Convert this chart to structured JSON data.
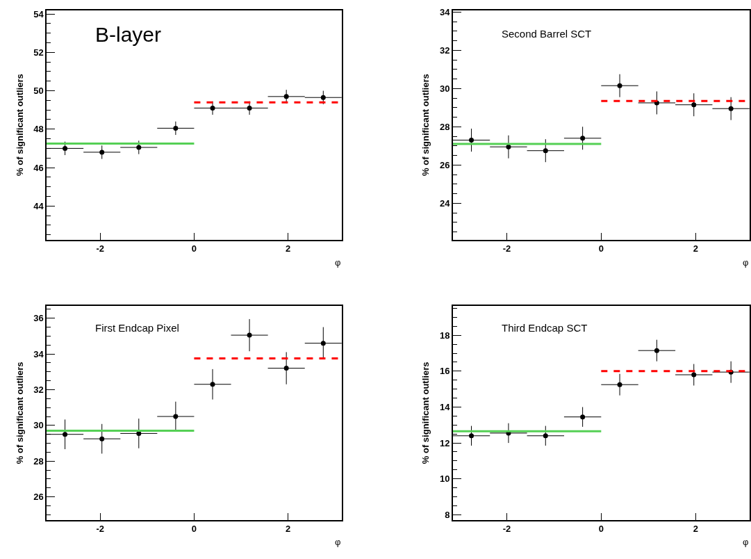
{
  "chart_data": [
    {
      "type": "scatter",
      "title": "B-layer",
      "xlabel": "φ",
      "ylabel": "% of significant outliers",
      "xlim": [
        -3.1416,
        3.1416
      ],
      "xticks": [
        -2,
        0,
        2
      ],
      "ylim": [
        42.25,
        54.2
      ],
      "yticks": [
        44,
        46,
        48,
        50,
        52,
        54
      ],
      "series": [
        {
          "marker": "circle",
          "color": "#000000",
          "x": [
            -2.749,
            -1.963,
            -1.178,
            -0.393,
            0.393,
            1.178,
            1.963,
            2.749
          ],
          "values": [
            47.0,
            46.8,
            47.05,
            48.05,
            49.1,
            49.1,
            49.7,
            49.65
          ],
          "errors": [
            0.35,
            0.35,
            0.35,
            0.35,
            0.35,
            0.35,
            0.35,
            0.35
          ],
          "xerrors": [
            0.393,
            0.393,
            0.393,
            0.393,
            0.393,
            0.393,
            0.393,
            0.393
          ]
        },
        {
          "type": "line",
          "color": "#55d055",
          "line_style": "solid",
          "x": [
            -3.1416,
            0
          ],
          "values": [
            47.25,
            47.25
          ]
        },
        {
          "type": "line",
          "color": "#ff0000",
          "line_style": "dashed",
          "x": [
            0,
            3.1416
          ],
          "values": [
            49.4,
            49.4
          ]
        }
      ]
    },
    {
      "type": "scatter",
      "title": "Second Barrel SCT",
      "xlabel": "φ",
      "ylabel": "% of significant outliers",
      "xlim": [
        -3.1416,
        3.1416
      ],
      "xticks": [
        -2,
        0,
        2
      ],
      "ylim": [
        22.1,
        34.1
      ],
      "yticks": [
        24,
        26,
        28,
        30,
        32,
        34
      ],
      "series": [
        {
          "marker": "circle",
          "color": "#000000",
          "x": [
            -2.749,
            -1.963,
            -1.178,
            -0.393,
            0.393,
            1.178,
            1.963,
            2.749
          ],
          "values": [
            27.3,
            26.95,
            26.75,
            27.4,
            30.15,
            29.25,
            29.15,
            28.95
          ],
          "errors": [
            0.6,
            0.6,
            0.6,
            0.6,
            0.6,
            0.6,
            0.6,
            0.6
          ],
          "xerrors": [
            0.393,
            0.393,
            0.393,
            0.393,
            0.393,
            0.393,
            0.393,
            0.393
          ]
        },
        {
          "type": "line",
          "color": "#55d055",
          "line_style": "solid",
          "x": [
            -3.1416,
            0
          ],
          "values": [
            27.1,
            27.1
          ]
        },
        {
          "type": "line",
          "color": "#ff0000",
          "line_style": "dashed",
          "x": [
            0,
            3.1416
          ],
          "values": [
            29.35,
            29.35
          ]
        }
      ]
    },
    {
      "type": "scatter",
      "title": "First Endcap Pixel",
      "xlabel": "φ",
      "ylabel": "% of significant outliers",
      "xlim": [
        -3.1416,
        3.1416
      ],
      "xticks": [
        -2,
        0,
        2
      ],
      "ylim": [
        24.7,
        36.7
      ],
      "yticks": [
        26,
        28,
        30,
        32,
        34,
        36
      ],
      "series": [
        {
          "marker": "circle",
          "color": "#000000",
          "x": [
            -2.749,
            -1.963,
            -1.178,
            -0.393,
            0.393,
            1.178,
            1.963,
            2.749
          ],
          "values": [
            29.5,
            29.25,
            29.55,
            30.5,
            32.3,
            35.05,
            33.2,
            34.6
          ],
          "errors": [
            0.83,
            0.83,
            0.83,
            0.83,
            0.85,
            0.9,
            0.9,
            0.9
          ],
          "xerrors": [
            0.393,
            0.393,
            0.393,
            0.393,
            0.393,
            0.393,
            0.393,
            0.393
          ]
        },
        {
          "type": "line",
          "color": "#55d055",
          "line_style": "solid",
          "x": [
            -3.1416,
            0
          ],
          "values": [
            29.7,
            29.7
          ]
        },
        {
          "type": "line",
          "color": "#ff0000",
          "line_style": "dashed",
          "x": [
            0,
            3.1416
          ],
          "values": [
            33.75,
            33.75
          ]
        }
      ]
    },
    {
      "type": "scatter",
      "title": "Third Endcap SCT",
      "xlabel": "φ",
      "ylabel": "% of significant outliers",
      "xlim": [
        -3.1416,
        3.1416
      ],
      "xticks": [
        -2,
        0,
        2
      ],
      "ylim": [
        7.7,
        19.65
      ],
      "yticks": [
        8,
        10,
        12,
        14,
        16,
        18
      ],
      "series": [
        {
          "marker": "circle",
          "color": "#000000",
          "x": [
            -2.749,
            -1.963,
            -1.178,
            -0.393,
            0.393,
            1.178,
            1.963,
            2.749
          ],
          "values": [
            12.4,
            12.55,
            12.4,
            13.45,
            15.25,
            17.15,
            15.8,
            15.95
          ],
          "errors": [
            0.55,
            0.55,
            0.55,
            0.55,
            0.6,
            0.6,
            0.6,
            0.6
          ],
          "xerrors": [
            0.393,
            0.393,
            0.393,
            0.393,
            0.393,
            0.393,
            0.393,
            0.393
          ]
        },
        {
          "type": "line",
          "color": "#55d055",
          "line_style": "solid",
          "x": [
            -3.1416,
            0
          ],
          "values": [
            12.65,
            12.65
          ]
        },
        {
          "type": "line",
          "color": "#ff0000",
          "line_style": "dashed",
          "x": [
            0,
            3.1416
          ],
          "values": [
            16.0,
            16.0
          ]
        }
      ]
    }
  ]
}
